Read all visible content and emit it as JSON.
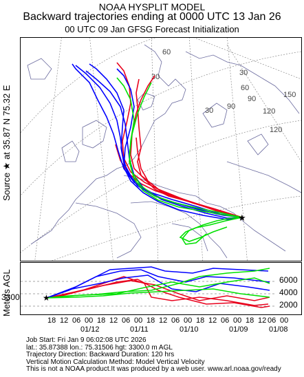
{
  "header": {
    "line1": "NOAA HYSPLIT MODEL",
    "line2": "Backward trajectories ending at 0000 UTC 13 Jan 26",
    "line3": "00 UTC 09 Jan    GFSG  Forecast Initialization"
  },
  "source_label": "Source ★ at   35.87 N   75.32 E",
  "map": {
    "latlon_labels": [
      "60",
      "30",
      "30",
      "60",
      "90",
      "120",
      "150",
      "120",
      "90",
      "30"
    ],
    "colors": {
      "red": "#e8001c",
      "blue": "#0000ff",
      "green": "#00e000",
      "coast": "#6a6a9e",
      "grid": "#7a7a7a"
    }
  },
  "vertical": {
    "axis_label": "Meters AGL",
    "start_height": "3300",
    "ticks": [
      "6000",
      "4000",
      "2000"
    ]
  },
  "time_axis": {
    "hour_labels": [
      "18",
      "12",
      "06",
      "00",
      "18",
      "12",
      "06",
      "00",
      "18",
      "12",
      "06",
      "00",
      "18",
      "12",
      "06",
      "00",
      "18",
      "12",
      "06",
      "00"
    ],
    "date_labels": [
      "01/12",
      "01/11",
      "01/10",
      "01/09",
      "01/08"
    ]
  },
  "info": {
    "line1": "Job Start: Fri Jan  9 06:02:08 UTC 2026",
    "line2": "lat.: 35.87388    lon.: 75.31506    hgt: 3300.0 m AGL",
    "line3": "Trajectory Direction: Backward       Duration: 120 hrs",
    "line4": "Vertical Motion Calculation Method: Model Vertical Velocity",
    "line5": "This is not a NOAA product.It was produced by a web user. www.arl.noaa.gov/ready"
  }
}
